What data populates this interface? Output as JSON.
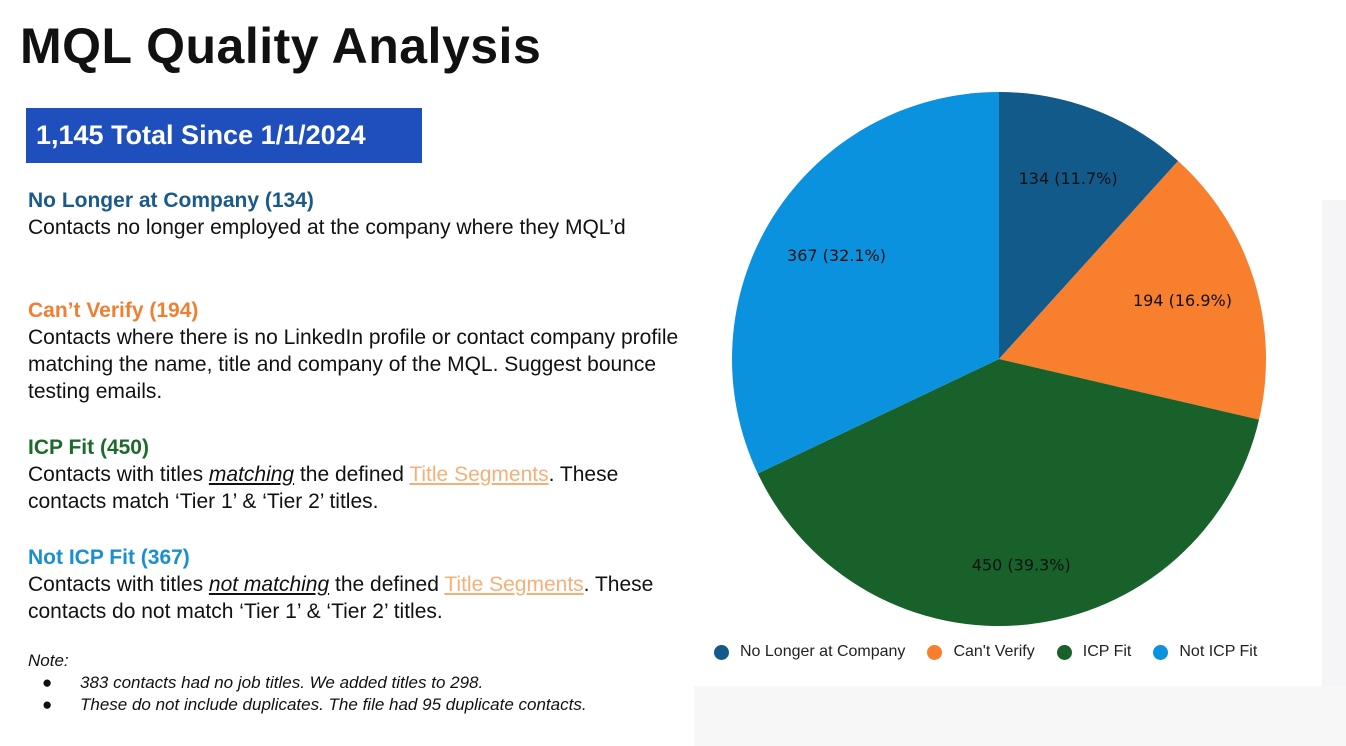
{
  "title": "MQL Quality Analysis",
  "banner": "1,145 Total Since 1/1/2024",
  "sections": [
    {
      "heading": "No Longer at Company (134)",
      "color": "#1a5a8a",
      "body": "Contacts no longer employed at the company where they MQL’d"
    },
    {
      "heading": "Can’t Verify (194)",
      "color": "#f07f32",
      "body": "Contacts where there is no LinkedIn profile or contact company profile matching the name, title and company of the MQL. Suggest bounce testing emails."
    },
    {
      "heading": "ICP Fit (450)",
      "color": "#1d6b2c",
      "body_pre": "Contacts with titles ",
      "body_emph": "matching",
      "body_mid": " the defined ",
      "link": "Title Segments",
      "body_post": ". These contacts match ‘Tier 1’ & ‘Tier 2’ titles."
    },
    {
      "heading": "Not ICP Fit (367)",
      "color": "#1a8fd0",
      "body_pre": "Contacts with titles ",
      "body_emph": "not matching",
      "body_mid": " the defined ",
      "link": "Title Segments",
      "body_post": ". These contacts do not match ‘Tier 1’ & ‘Tier 2’ titles."
    }
  ],
  "note": {
    "label": "Note:",
    "bullet": "●",
    "items": [
      "383 contacts had no job titles. We added titles to 298.",
      "These do not include duplicates. The file had 95 duplicate contacts."
    ]
  },
  "chart_data": {
    "type": "pie",
    "categories": [
      "No Longer at Company",
      "Can't Verify",
      "ICP Fit",
      "Not ICP Fit"
    ],
    "values": [
      134,
      194,
      450,
      367
    ],
    "labels": [
      "134 (11.7%)",
      "194 (16.9%)",
      "450 (39.3%)",
      "367 (32.1%)"
    ],
    "colors": [
      "#125a8a",
      "#f77f2e",
      "#18612a",
      "#0b92de"
    ],
    "legend": "bottom",
    "start": "top, clockwise"
  }
}
